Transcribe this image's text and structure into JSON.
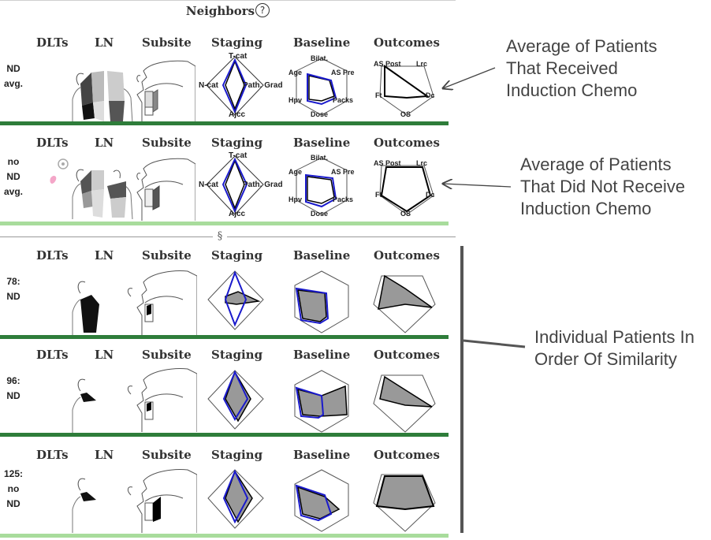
{
  "title": "Neighbors",
  "help_symbol": "?",
  "section_symbol": "§",
  "headers": {
    "dlts": "DLTs",
    "ln": "LN",
    "subsite": "Subsite",
    "staging": "Staging",
    "baseline": "Baseline",
    "outcomes": "Outcomes"
  },
  "staging_axes": {
    "top": "T-cat",
    "left": "N-cat",
    "right": "Path. Grade",
    "bottom": "Ajcc"
  },
  "baseline_axes": {
    "top": "Bilat.",
    "top_left": "Age",
    "top_right": "AS Pre",
    "bottom_left": "Hpv",
    "bottom_right": "Packs",
    "bottom": "Dose"
  },
  "outcome_axes": {
    "top_left": "AS Post",
    "top_right": "Lrc",
    "left": "Ft",
    "right": "Dc",
    "bottom": "OS"
  },
  "rows": [
    {
      "label": [
        "ND",
        "avg."
      ]
    },
    {
      "label": [
        "no",
        "ND",
        "avg."
      ]
    },
    {
      "label": [
        "78:",
        "ND"
      ]
    },
    {
      "label": [
        "96:",
        "ND"
      ]
    },
    {
      "label": [
        "125:",
        "no",
        "ND"
      ]
    }
  ],
  "annotations": {
    "induction": [
      "Average of Patients",
      "That Received",
      "Induction Chemo"
    ],
    "no_induction": [
      "Average of Patients",
      "That Did Not Receive",
      "Induction Chemo"
    ],
    "individual": [
      "Individual Patients In",
      "Order Of Similarity"
    ]
  },
  "colors": {
    "dark_separator": "#2e7d3a",
    "light_separator": "#a8dc9c",
    "staging_outline": "#1a1acc",
    "glyph_fill": "#999999"
  }
}
